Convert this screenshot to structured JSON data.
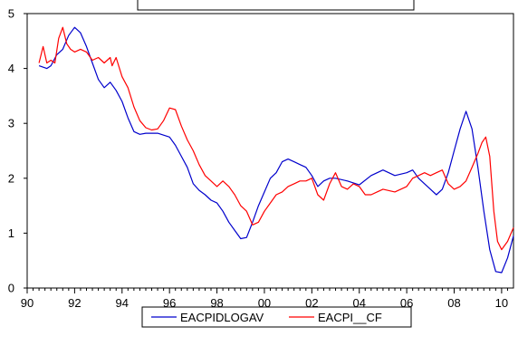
{
  "chart_data": {
    "type": "line",
    "title": "",
    "xlabel": "",
    "ylabel": "",
    "xlim": [
      1990.0,
      2010.5
    ],
    "ylim": [
      0,
      5
    ],
    "x_ticks": [
      "90",
      "92",
      "94",
      "96",
      "98",
      "00",
      "02",
      "04",
      "06",
      "08",
      "10"
    ],
    "y_ticks": [
      "0",
      "1",
      "2",
      "3",
      "4",
      "5"
    ],
    "grid": false,
    "legend": "bottom-center",
    "series": [
      {
        "name": "EACPIDLOGAV",
        "color": "#0000cc",
        "x": [
          1990.5,
          1990.83,
          1991.0,
          1991.25,
          1991.5,
          1991.75,
          1992.0,
          1992.25,
          1992.5,
          1992.75,
          1993.0,
          1993.25,
          1993.5,
          1993.75,
          1994.0,
          1994.25,
          1994.5,
          1994.75,
          1995.0,
          1995.5,
          1996.0,
          1996.25,
          1996.5,
          1996.75,
          1997.0,
          1997.25,
          1997.5,
          1997.75,
          1998.0,
          1998.25,
          1998.5,
          1998.75,
          1999.0,
          1999.25,
          1999.5,
          1999.75,
          2000.0,
          2000.25,
          2000.5,
          2000.75,
          2001.0,
          2001.25,
          2001.5,
          2001.75,
          2002.0,
          2002.25,
          2002.5,
          2002.75,
          2003.0,
          2003.5,
          2004.0,
          2004.5,
          2005.0,
          2005.5,
          2006.0,
          2006.25,
          2006.5,
          2006.75,
          2007.0,
          2007.25,
          2007.5,
          2007.75,
          2008.0,
          2008.25,
          2008.5,
          2008.75,
          2009.0,
          2009.25,
          2009.5,
          2009.75,
          2010.0,
          2010.25,
          2010.5
        ],
        "values": [
          4.05,
          4.0,
          4.05,
          4.25,
          4.35,
          4.6,
          4.75,
          4.65,
          4.4,
          4.1,
          3.8,
          3.65,
          3.75,
          3.6,
          3.4,
          3.1,
          2.85,
          2.8,
          2.82,
          2.82,
          2.75,
          2.6,
          2.4,
          2.2,
          1.9,
          1.78,
          1.7,
          1.6,
          1.55,
          1.4,
          1.2,
          1.05,
          0.9,
          0.92,
          1.2,
          1.5,
          1.75,
          2.0,
          2.1,
          2.3,
          2.35,
          2.3,
          2.25,
          2.2,
          2.05,
          1.85,
          1.95,
          2.0,
          2.0,
          1.95,
          1.88,
          2.05,
          2.15,
          2.05,
          2.1,
          2.15,
          2.0,
          1.9,
          1.8,
          1.7,
          1.8,
          2.1,
          2.5,
          2.9,
          3.22,
          2.9,
          2.2,
          1.4,
          0.7,
          0.3,
          0.28,
          0.55,
          0.95
        ]
      },
      {
        "name": "EACPI__CF",
        "color": "#ff0000",
        "x": [
          1990.5,
          1990.67,
          1990.83,
          1991.0,
          1991.17,
          1991.33,
          1991.5,
          1991.67,
          1991.83,
          1992.0,
          1992.25,
          1992.5,
          1992.75,
          1993.0,
          1993.25,
          1993.5,
          1993.58,
          1993.75,
          1994.0,
          1994.25,
          1994.5,
          1994.75,
          1995.0,
          1995.25,
          1995.5,
          1995.75,
          1996.0,
          1996.25,
          1996.5,
          1996.75,
          1997.0,
          1997.25,
          1997.5,
          1997.75,
          1998.0,
          1998.25,
          1998.5,
          1998.75,
          1999.0,
          1999.25,
          1999.5,
          1999.75,
          2000.0,
          2000.25,
          2000.5,
          2000.75,
          2001.0,
          2001.25,
          2001.5,
          2001.75,
          2002.0,
          2002.25,
          2002.5,
          2002.75,
          2003.0,
          2003.25,
          2003.5,
          2003.75,
          2004.0,
          2004.25,
          2004.5,
          2004.75,
          2005.0,
          2005.5,
          2006.0,
          2006.25,
          2006.5,
          2006.75,
          2007.0,
          2007.25,
          2007.5,
          2007.75,
          2008.0,
          2008.25,
          2008.5,
          2008.75,
          2009.0,
          2009.17,
          2009.33,
          2009.5,
          2009.67,
          2009.83,
          2010.0,
          2010.25,
          2010.5
        ],
        "values": [
          4.1,
          4.4,
          4.1,
          4.15,
          4.1,
          4.55,
          4.75,
          4.45,
          4.35,
          4.3,
          4.35,
          4.3,
          4.15,
          4.2,
          4.1,
          4.2,
          4.05,
          4.2,
          3.85,
          3.65,
          3.3,
          3.05,
          2.92,
          2.88,
          2.9,
          3.05,
          3.28,
          3.25,
          2.95,
          2.7,
          2.5,
          2.25,
          2.05,
          1.95,
          1.85,
          1.95,
          1.85,
          1.7,
          1.5,
          1.4,
          1.15,
          1.2,
          1.4,
          1.55,
          1.7,
          1.75,
          1.85,
          1.9,
          1.95,
          1.95,
          2.0,
          1.7,
          1.6,
          1.9,
          2.1,
          1.85,
          1.8,
          1.9,
          1.85,
          1.7,
          1.7,
          1.75,
          1.8,
          1.75,
          1.85,
          2.0,
          2.05,
          2.1,
          2.05,
          2.1,
          2.15,
          1.9,
          1.8,
          1.85,
          1.95,
          2.2,
          2.45,
          2.65,
          2.75,
          2.4,
          1.4,
          0.85,
          0.7,
          0.85,
          1.1
        ]
      }
    ]
  }
}
